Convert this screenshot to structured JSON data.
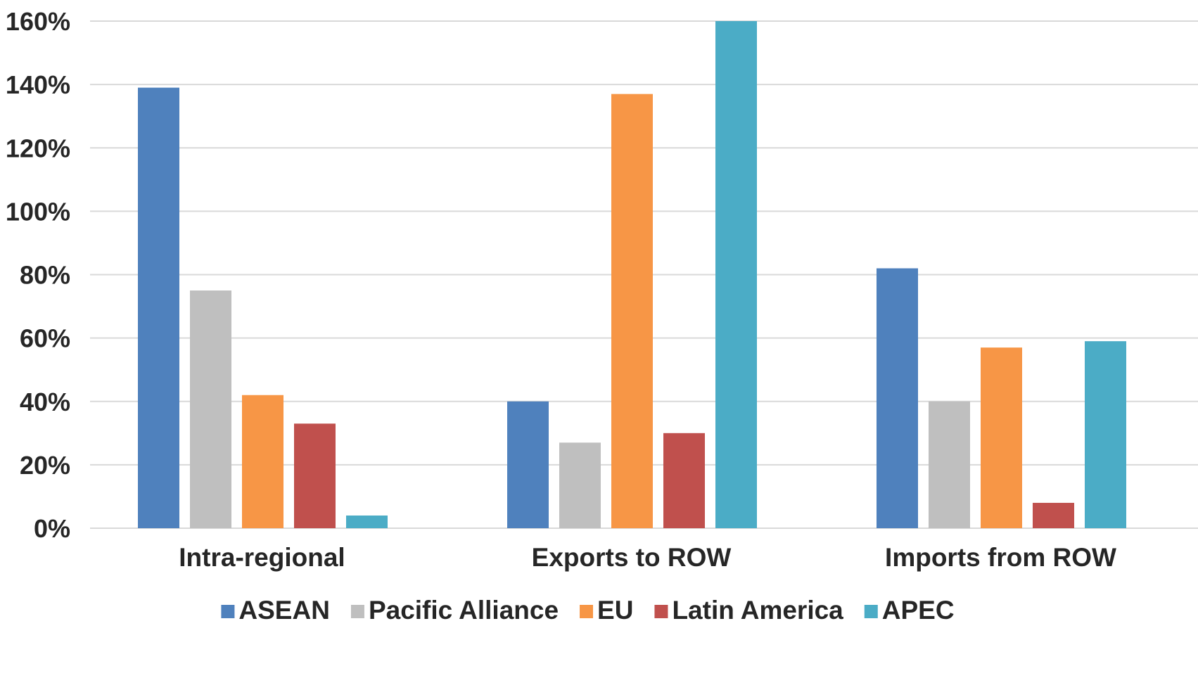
{
  "chart_data": {
    "type": "bar",
    "title": "",
    "xlabel": "",
    "ylabel": "",
    "categories": [
      "Intra-regional",
      "Exports to ROW",
      "Imports from ROW"
    ],
    "series": [
      {
        "name": "ASEAN",
        "color": "#4f81bd",
        "values": [
          139,
          40,
          82
        ]
      },
      {
        "name": "Pacific Alliance",
        "color": "#bfbfbf",
        "values": [
          75,
          27,
          40
        ]
      },
      {
        "name": "EU",
        "color": "#f79646",
        "values": [
          42,
          137,
          57
        ]
      },
      {
        "name": "Latin America",
        "color": "#c0504d",
        "values": [
          33,
          30,
          8
        ]
      },
      {
        "name": "APEC",
        "color": "#4bacc6",
        "values": [
          4,
          160,
          59
        ]
      }
    ],
    "ylim": [
      0,
      160
    ],
    "yticks": [
      0,
      20,
      40,
      60,
      80,
      100,
      120,
      140,
      160
    ],
    "ytick_labels": [
      "0%",
      "20%",
      "40%",
      "60%",
      "80%",
      "100%",
      "120%",
      "140%",
      "160%"
    ],
    "grid": true,
    "legend_position": "bottom"
  }
}
